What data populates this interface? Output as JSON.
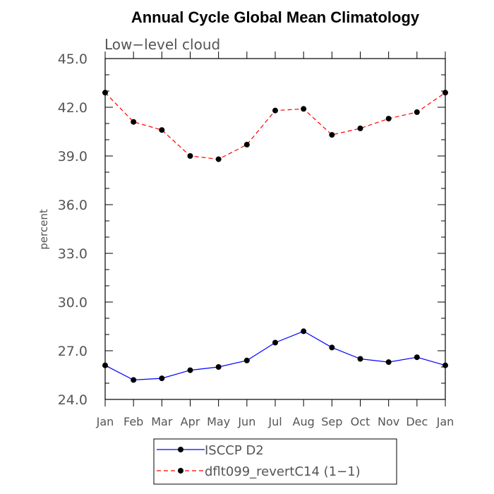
{
  "chart_data": {
    "type": "line",
    "title": "Annual Cycle Global Mean Climatology",
    "subtitle": "Low−level cloud",
    "ylabel": "percent",
    "xlabel": "",
    "categories": [
      "Jan",
      "Feb",
      "Mar",
      "Apr",
      "May",
      "Jun",
      "Jul",
      "Aug",
      "Sep",
      "Oct",
      "Nov",
      "Dec",
      "Jan"
    ],
    "ylim": [
      24.0,
      45.0
    ],
    "yticks": [
      "24.0",
      "27.0",
      "30.0",
      "33.0",
      "36.0",
      "39.0",
      "42.0",
      "45.0"
    ],
    "series": [
      {
        "name": "ISCCP D2",
        "color": "#0000ff",
        "dash": "solid",
        "values": [
          26.1,
          25.2,
          25.3,
          25.8,
          26.0,
          26.4,
          27.5,
          28.2,
          27.2,
          26.5,
          26.3,
          26.6,
          26.1
        ]
      },
      {
        "name": "dflt099_revertC14 (1−1)",
        "color": "#ff0000",
        "dash": "dashed",
        "values": [
          42.9,
          41.1,
          40.6,
          39.0,
          38.8,
          39.7,
          41.8,
          41.9,
          40.3,
          40.7,
          41.3,
          41.7,
          42.9
        ]
      }
    ],
    "legend_position": "bottom"
  }
}
